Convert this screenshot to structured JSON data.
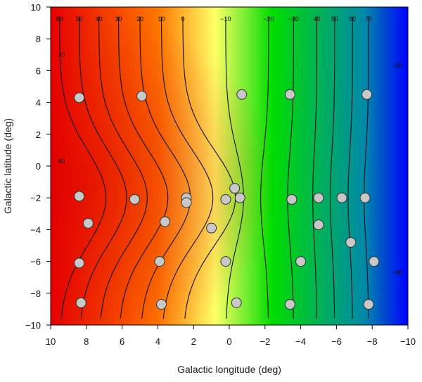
{
  "chart_data": {
    "type": "heatmap",
    "title": "",
    "xlabel": "Galactic longitude (deg)",
    "ylabel": "Galactic latitude (deg)",
    "xlim": [
      10,
      -10
    ],
    "ylim": [
      -10,
      10
    ],
    "x_reversed": true,
    "x_ticks": [
      10,
      8,
      6,
      4,
      2,
      0,
      -2,
      -4,
      -6,
      -8,
      -10
    ],
    "x_tick_labels": [
      "10",
      "8",
      "6",
      "4",
      "2",
      "0",
      "−2",
      "−4",
      "−6",
      "−8",
      "−10"
    ],
    "y_ticks": [
      -10,
      -8,
      -6,
      -4,
      -2,
      0,
      2,
      4,
      6,
      8,
      10
    ],
    "y_tick_labels": [
      "−10",
      "−8",
      "−6",
      "−4",
      "−2",
      "0",
      "2",
      "4",
      "6",
      "8",
      "10"
    ],
    "colormap": [
      "#e60000",
      "#ff7700",
      "#ffff66",
      "#00dd00",
      "#0088aa",
      "#0000ff"
    ],
    "contour_top_labels": [
      {
        "text": "60",
        "x": 9.5
      },
      {
        "text": "50",
        "x": 8.4
      },
      {
        "text": "40",
        "x": 7.3
      },
      {
        "text": "30",
        "x": 6.2
      },
      {
        "text": "20",
        "x": 5.0
      },
      {
        "text": "10",
        "x": 3.8
      },
      {
        "text": "0",
        "x": 2.6
      },
      {
        "text": "−10",
        "x": 0.2
      },
      {
        "text": "−20",
        "x": -2.2
      },
      {
        "text": "−30",
        "x": -3.6
      },
      {
        "text": "40",
        "x": -4.9
      },
      {
        "text": "50",
        "x": -5.9
      },
      {
        "text": "60",
        "x": -6.9
      },
      {
        "text": "70",
        "x": -7.8
      }
    ],
    "contour_side_labels": [
      {
        "text": "70",
        "x": 9.4,
        "y": 7.0
      },
      {
        "text": "80",
        "x": 9.4,
        "y": 0.3
      },
      {
        "text": "−80",
        "x": -9.4,
        "y": 6.3
      },
      {
        "text": "−80",
        "x": -9.4,
        "y": -6.7
      }
    ],
    "points": [
      {
        "x": 8.4,
        "y": 4.3
      },
      {
        "x": 4.9,
        "y": 4.4
      },
      {
        "x": -0.7,
        "y": 4.5
      },
      {
        "x": -3.4,
        "y": 4.5
      },
      {
        "x": -7.7,
        "y": 4.5
      },
      {
        "x": 8.4,
        "y": -1.9
      },
      {
        "x": 5.3,
        "y": -2.1
      },
      {
        "x": 2.4,
        "y": -2.0
      },
      {
        "x": 2.4,
        "y": -2.3
      },
      {
        "x": 0.2,
        "y": -2.1
      },
      {
        "x": -0.3,
        "y": -1.4
      },
      {
        "x": -0.6,
        "y": -2.0
      },
      {
        "x": -3.5,
        "y": -2.1
      },
      {
        "x": -5.0,
        "y": -2.0
      },
      {
        "x": -6.3,
        "y": -2.0
      },
      {
        "x": -7.6,
        "y": -2.0
      },
      {
        "x": 7.9,
        "y": -3.6
      },
      {
        "x": 3.6,
        "y": -3.5
      },
      {
        "x": 1.0,
        "y": -3.9
      },
      {
        "x": -5.0,
        "y": -3.7
      },
      {
        "x": -6.8,
        "y": -4.8
      },
      {
        "x": 8.4,
        "y": -6.1
      },
      {
        "x": 3.9,
        "y": -6.0
      },
      {
        "x": 0.2,
        "y": -6.0
      },
      {
        "x": -4.0,
        "y": -6.0
      },
      {
        "x": -8.1,
        "y": -6.0
      },
      {
        "x": 8.3,
        "y": -8.6
      },
      {
        "x": 3.8,
        "y": -8.7
      },
      {
        "x": -0.4,
        "y": -8.6
      },
      {
        "x": -3.4,
        "y": -8.7
      },
      {
        "x": -7.8,
        "y": -8.7
      }
    ]
  }
}
